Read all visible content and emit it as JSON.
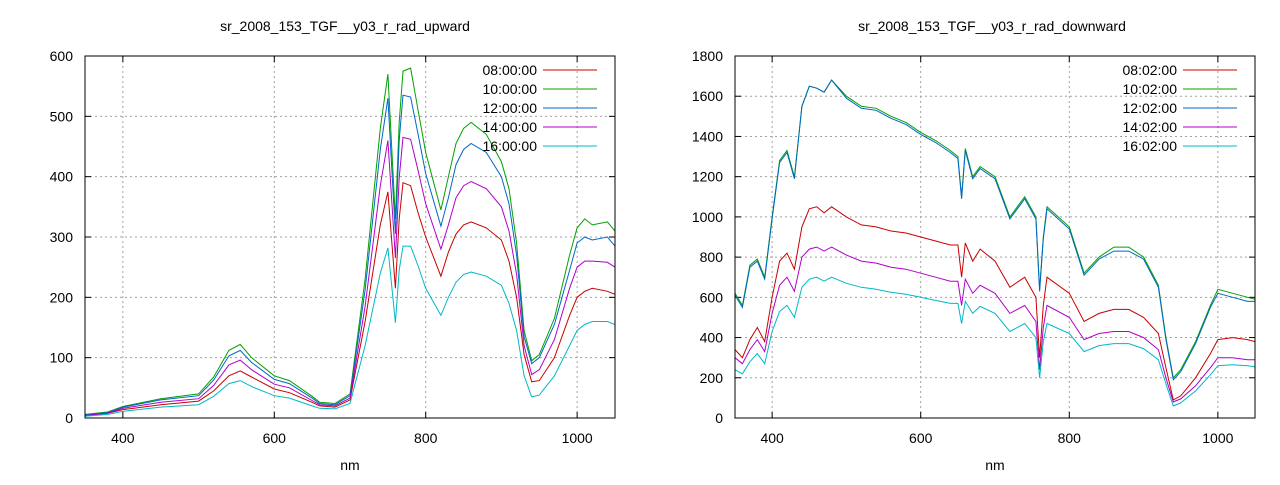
{
  "chart_data": [
    {
      "type": "line",
      "title": "sr_2008_153_TGF__y03_r_rad_upward",
      "xlabel": "nm",
      "ylabel": "",
      "xlim": [
        350,
        1050
      ],
      "ylim": [
        0,
        600
      ],
      "xticks": [
        400,
        600,
        800,
        1000
      ],
      "yticks": [
        0,
        100,
        200,
        300,
        400,
        500,
        600
      ],
      "grid": true,
      "legend": "top-right",
      "series": [
        {
          "name": "08:00:00",
          "color": "#c80000",
          "x": [
            350,
            380,
            400,
            450,
            500,
            520,
            540,
            555,
            570,
            600,
            620,
            650,
            660,
            680,
            700,
            720,
            740,
            750,
            760,
            765,
            770,
            780,
            790,
            800,
            820,
            830,
            840,
            850,
            860,
            880,
            900,
            910,
            920,
            930,
            940,
            950,
            970,
            990,
            1000,
            1010,
            1020,
            1040,
            1050
          ],
          "y": [
            4,
            8,
            14,
            22,
            28,
            45,
            70,
            78,
            68,
            48,
            42,
            26,
            20,
            18,
            30,
            160,
            320,
            375,
            215,
            330,
            390,
            385,
            340,
            300,
            235,
            275,
            305,
            320,
            325,
            315,
            295,
            260,
            200,
            105,
            60,
            62,
            100,
            170,
            200,
            210,
            215,
            210,
            205
          ]
        },
        {
          "name": "10:00:00",
          "color": "#00a000",
          "x": [
            350,
            380,
            400,
            450,
            500,
            520,
            540,
            555,
            570,
            600,
            620,
            650,
            660,
            680,
            700,
            720,
            740,
            750,
            760,
            765,
            770,
            780,
            790,
            800,
            820,
            830,
            840,
            850,
            860,
            880,
            900,
            910,
            920,
            930,
            940,
            950,
            970,
            990,
            1000,
            1010,
            1020,
            1040,
            1050
          ],
          "y": [
            6,
            10,
            19,
            32,
            40,
            68,
            112,
            122,
            100,
            70,
            62,
            36,
            26,
            24,
            40,
            230,
            480,
            570,
            330,
            490,
            575,
            580,
            510,
            440,
            345,
            400,
            455,
            480,
            490,
            470,
            425,
            380,
            290,
            145,
            95,
            105,
            165,
            270,
            315,
            330,
            320,
            325,
            310
          ]
        },
        {
          "name": "12:00:00",
          "color": "#0066c8",
          "x": [
            350,
            380,
            400,
            450,
            500,
            520,
            540,
            555,
            570,
            600,
            620,
            650,
            660,
            680,
            700,
            720,
            740,
            750,
            760,
            765,
            770,
            780,
            790,
            800,
            820,
            830,
            840,
            850,
            860,
            880,
            900,
            910,
            920,
            930,
            940,
            950,
            970,
            990,
            1000,
            1010,
            1020,
            1040,
            1050
          ],
          "y": [
            5,
            9,
            18,
            30,
            37,
            63,
            103,
            112,
            92,
            64,
            57,
            33,
            24,
            22,
            37,
            212,
            445,
            530,
            305,
            460,
            535,
            532,
            470,
            405,
            318,
            365,
            420,
            445,
            455,
            440,
            400,
            355,
            270,
            135,
            90,
            100,
            155,
            245,
            290,
            300,
            295,
            300,
            285
          ]
        },
        {
          "name": "14:00:00",
          "color": "#b000c8",
          "x": [
            350,
            380,
            400,
            450,
            500,
            520,
            540,
            555,
            570,
            600,
            620,
            650,
            660,
            680,
            700,
            720,
            740,
            750,
            760,
            765,
            770,
            780,
            790,
            800,
            820,
            830,
            840,
            850,
            860,
            880,
            900,
            910,
            920,
            930,
            940,
            950,
            970,
            990,
            1000,
            1010,
            1020,
            1040,
            1050
          ],
          "y": [
            4,
            8,
            16,
            26,
            32,
            54,
            88,
            96,
            80,
            56,
            50,
            29,
            22,
            20,
            33,
            185,
            385,
            460,
            265,
            398,
            465,
            462,
            410,
            355,
            280,
            320,
            365,
            385,
            392,
            380,
            350,
            310,
            238,
            120,
            72,
            80,
            130,
            215,
            250,
            260,
            260,
            258,
            250
          ]
        },
        {
          "name": "16:00:00",
          "color": "#00b8c8",
          "x": [
            350,
            380,
            400,
            450,
            500,
            520,
            540,
            555,
            570,
            600,
            620,
            650,
            660,
            680,
            700,
            720,
            740,
            750,
            760,
            765,
            770,
            780,
            790,
            800,
            820,
            830,
            840,
            850,
            860,
            880,
            900,
            910,
            920,
            930,
            940,
            950,
            970,
            990,
            1000,
            1010,
            1020,
            1040,
            1050
          ],
          "y": [
            3,
            6,
            11,
            18,
            22,
            36,
            57,
            62,
            52,
            37,
            33,
            20,
            16,
            15,
            24,
            120,
            240,
            282,
            158,
            245,
            285,
            285,
            252,
            215,
            170,
            200,
            225,
            238,
            242,
            235,
            220,
            190,
            145,
            70,
            35,
            38,
            70,
            120,
            145,
            155,
            160,
            160,
            155
          ]
        }
      ]
    },
    {
      "type": "line",
      "title": "sr_2008_153_TGF__y03_r_rad_downward",
      "xlabel": "nm",
      "ylabel": "",
      "xlim": [
        350,
        1050
      ],
      "ylim": [
        0,
        1800
      ],
      "xticks": [
        400,
        600,
        800,
        1000
      ],
      "yticks": [
        0,
        200,
        400,
        600,
        800,
        1000,
        1200,
        1400,
        1600,
        1800
      ],
      "grid": true,
      "legend": "top-right",
      "series": [
        {
          "name": "08:02:00",
          "color": "#c80000",
          "x": [
            350,
            360,
            370,
            380,
            390,
            400,
            410,
            420,
            430,
            440,
            450,
            460,
            470,
            480,
            500,
            520,
            540,
            560,
            580,
            600,
            620,
            640,
            650,
            655,
            660,
            670,
            680,
            700,
            720,
            740,
            755,
            760,
            765,
            770,
            800,
            820,
            840,
            860,
            880,
            900,
            920,
            930,
            940,
            950,
            970,
            990,
            1000,
            1020,
            1040,
            1050
          ],
          "y": [
            340,
            300,
            390,
            450,
            380,
            600,
            780,
            820,
            740,
            950,
            1040,
            1050,
            1020,
            1050,
            1000,
            960,
            950,
            930,
            920,
            900,
            880,
            860,
            860,
            700,
            870,
            780,
            840,
            780,
            650,
            700,
            600,
            300,
            560,
            700,
            620,
            480,
            520,
            540,
            540,
            500,
            420,
            250,
            90,
            110,
            200,
            320,
            390,
            400,
            390,
            380
          ]
        },
        {
          "name": "10:02:00",
          "color": "#00a000",
          "x": [
            350,
            360,
            370,
            380,
            390,
            400,
            410,
            420,
            430,
            440,
            450,
            460,
            470,
            480,
            500,
            520,
            540,
            560,
            580,
            600,
            620,
            640,
            650,
            655,
            660,
            670,
            680,
            700,
            720,
            740,
            755,
            760,
            765,
            770,
            800,
            820,
            840,
            860,
            880,
            900,
            920,
            930,
            940,
            950,
            970,
            990,
            1000,
            1020,
            1040,
            1050
          ],
          "y": [
            620,
            560,
            760,
            790,
            700,
            1000,
            1280,
            1330,
            1200,
            1550,
            1650,
            1640,
            1620,
            1680,
            1600,
            1550,
            1540,
            1500,
            1470,
            1420,
            1380,
            1330,
            1300,
            1100,
            1340,
            1200,
            1250,
            1200,
            1000,
            1100,
            1000,
            640,
            900,
            1050,
            950,
            720,
            800,
            850,
            850,
            800,
            660,
            400,
            200,
            240,
            380,
            560,
            640,
            620,
            600,
            590
          ]
        },
        {
          "name": "12:02:00",
          "color": "#0066c8",
          "x": [
            350,
            360,
            370,
            380,
            390,
            400,
            410,
            420,
            430,
            440,
            450,
            460,
            470,
            480,
            500,
            520,
            540,
            560,
            580,
            600,
            620,
            640,
            650,
            655,
            660,
            670,
            680,
            700,
            720,
            740,
            755,
            760,
            765,
            770,
            800,
            820,
            840,
            860,
            880,
            900,
            920,
            930,
            940,
            950,
            970,
            990,
            1000,
            1020,
            1040,
            1050
          ],
          "y": [
            610,
            550,
            750,
            780,
            690,
            990,
            1270,
            1320,
            1190,
            1550,
            1650,
            1640,
            1620,
            1680,
            1590,
            1540,
            1530,
            1490,
            1460,
            1410,
            1370,
            1320,
            1290,
            1090,
            1330,
            1190,
            1240,
            1190,
            990,
            1090,
            990,
            630,
            890,
            1040,
            940,
            710,
            790,
            830,
            830,
            790,
            650,
            390,
            190,
            230,
            370,
            550,
            620,
            600,
            580,
            580
          ]
        },
        {
          "name": "14:02:00",
          "color": "#b000c8",
          "x": [
            350,
            360,
            370,
            380,
            390,
            400,
            410,
            420,
            430,
            440,
            450,
            460,
            470,
            480,
            500,
            520,
            540,
            560,
            580,
            600,
            620,
            640,
            650,
            655,
            660,
            670,
            680,
            700,
            720,
            740,
            755,
            760,
            765,
            770,
            800,
            820,
            840,
            860,
            880,
            900,
            920,
            930,
            940,
            950,
            970,
            990,
            1000,
            1020,
            1040,
            1050
          ],
          "y": [
            300,
            270,
            340,
            390,
            330,
            520,
            660,
            700,
            630,
            800,
            840,
            850,
            830,
            850,
            810,
            780,
            770,
            750,
            740,
            720,
            700,
            680,
            680,
            560,
            690,
            620,
            660,
            620,
            520,
            560,
            480,
            240,
            450,
            560,
            500,
            390,
            420,
            430,
            430,
            400,
            340,
            200,
            80,
            95,
            160,
            250,
            300,
            300,
            290,
            290
          ]
        },
        {
          "name": "16:02:00",
          "color": "#00b8c8",
          "x": [
            350,
            360,
            370,
            380,
            390,
            400,
            410,
            420,
            430,
            440,
            450,
            460,
            470,
            480,
            500,
            520,
            540,
            560,
            580,
            600,
            620,
            640,
            650,
            655,
            660,
            670,
            680,
            700,
            720,
            740,
            755,
            760,
            765,
            770,
            800,
            820,
            840,
            860,
            880,
            900,
            920,
            930,
            940,
            950,
            970,
            990,
            1000,
            1020,
            1040,
            1050
          ],
          "y": [
            240,
            220,
            280,
            320,
            270,
            430,
            530,
            560,
            500,
            650,
            690,
            700,
            680,
            700,
            670,
            650,
            640,
            625,
            615,
            600,
            585,
            570,
            570,
            470,
            580,
            520,
            555,
            520,
            430,
            470,
            400,
            200,
            380,
            470,
            420,
            330,
            360,
            370,
            370,
            345,
            290,
            170,
            60,
            75,
            135,
            215,
            260,
            265,
            260,
            255
          ]
        }
      ]
    }
  ]
}
